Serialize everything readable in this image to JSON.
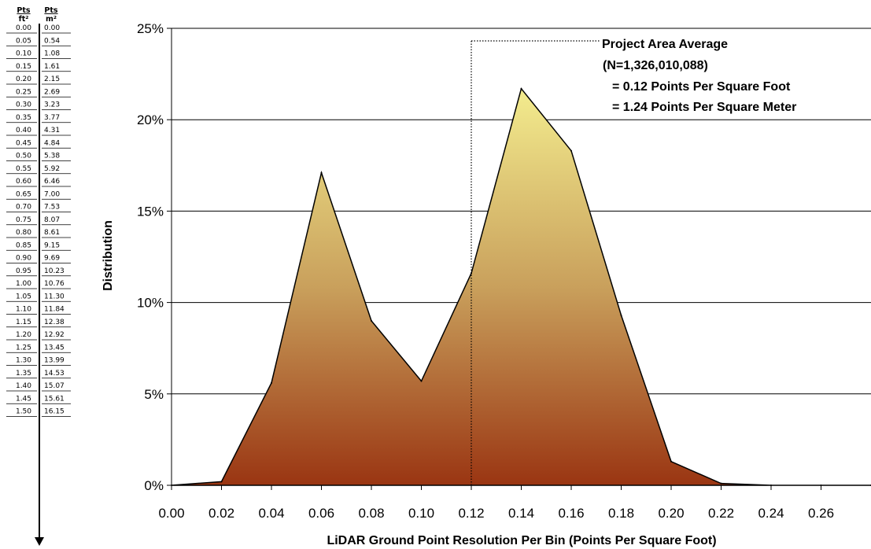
{
  "conversion_table": {
    "header_ft": "Pts",
    "header_ft_unit": "ft²",
    "header_m": "Pts",
    "header_m_unit": "m²",
    "rows": [
      [
        "0.00",
        "0.00"
      ],
      [
        "0.05",
        "0.54"
      ],
      [
        "0.10",
        "1.08"
      ],
      [
        "0.15",
        "1.61"
      ],
      [
        "0.20",
        "2.15"
      ],
      [
        "0.25",
        "2.69"
      ],
      [
        "0.30",
        "3.23"
      ],
      [
        "0.35",
        "3.77"
      ],
      [
        "0.40",
        "4.31"
      ],
      [
        "0.45",
        "4.84"
      ],
      [
        "0.50",
        "5.38"
      ],
      [
        "0.55",
        "5.92"
      ],
      [
        "0.60",
        "6.46"
      ],
      [
        "0.65",
        "7.00"
      ],
      [
        "0.70",
        "7.53"
      ],
      [
        "0.75",
        "8.07"
      ],
      [
        "0.80",
        "8.61"
      ],
      [
        "0.85",
        "9.15"
      ],
      [
        "0.90",
        "9.69"
      ],
      [
        "0.95",
        "10.23"
      ],
      [
        "1.00",
        "10.76"
      ],
      [
        "1.05",
        "11.30"
      ],
      [
        "1.10",
        "11.84"
      ],
      [
        "1.15",
        "12.38"
      ],
      [
        "1.20",
        "12.92"
      ],
      [
        "1.25",
        "13.45"
      ],
      [
        "1.30",
        "13.99"
      ],
      [
        "1.35",
        "14.53"
      ],
      [
        "1.40",
        "15.07"
      ],
      [
        "1.45",
        "15.61"
      ],
      [
        "1.50",
        "16.15"
      ]
    ]
  },
  "chart_data": {
    "type": "area",
    "title": "",
    "xlabel": "LiDAR Ground Point Resolution Per Bin (Points Per Square Foot)",
    "ylabel": "Distribution",
    "xlim": [
      0,
      0.28
    ],
    "ylim": [
      0,
      25
    ],
    "x_ticks": [
      "0.00",
      "0.02",
      "0.04",
      "0.06",
      "0.08",
      "0.10",
      "0.12",
      "0.14",
      "0.16",
      "0.18",
      "0.20",
      "0.22",
      "0.24",
      "0.26"
    ],
    "y_ticks": [
      "0%",
      "5%",
      "10%",
      "15%",
      "20%",
      "25%"
    ],
    "grid": "horizontal",
    "x": [
      0.0,
      0.02,
      0.04,
      0.06,
      0.08,
      0.1,
      0.12,
      0.14,
      0.16,
      0.18,
      0.2,
      0.22,
      0.24,
      0.26,
      0.28
    ],
    "values": [
      0.0,
      0.2,
      5.6,
      17.1,
      9.0,
      5.7,
      11.6,
      21.7,
      18.3,
      9.3,
      1.3,
      0.1,
      0.0,
      0.0,
      0.0
    ],
    "average_x": 0.12,
    "annotation": {
      "line1": "Project Area Average",
      "line2": "(N=1,326,010,088)",
      "line3": "= 0.12 Points Per Square Foot",
      "line4": "= 1.24 Points Per Square Meter"
    },
    "fill_colors": {
      "top": "#f3ec8e",
      "bottom": "#9a3512"
    }
  }
}
